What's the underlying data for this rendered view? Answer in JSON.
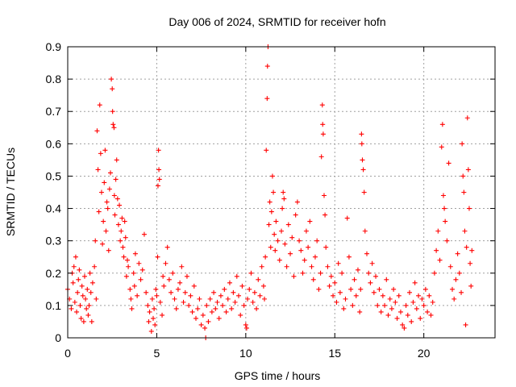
{
  "chart_data": {
    "type": "scatter",
    "title": "Day 006 of 2024, SRMTID for receiver hofn",
    "xlabel": "GPS time / hours",
    "ylabel": "SRMTID / TECUs",
    "xlim": [
      0,
      24
    ],
    "ylim": [
      0,
      0.9
    ],
    "xticks": [
      0,
      5,
      10,
      15,
      20
    ],
    "xtick_labels": [
      "0",
      "5",
      "10",
      "15",
      "20"
    ],
    "yticks": [
      0,
      0.1,
      0.2,
      0.3,
      0.4,
      0.5,
      0.6,
      0.7,
      0.8,
      0.9
    ],
    "ytick_labels": [
      "0",
      "0.1",
      "0.2",
      "0.3",
      "0.4",
      "0.5",
      "0.6",
      "0.7",
      "0.8",
      "0.9"
    ],
    "grid": true,
    "marker": "+",
    "color": "#ff0000",
    "series": [
      {
        "name": "SRMTID",
        "points": [
          [
            0.0,
            0.15
          ],
          [
            0.1,
            0.12
          ],
          [
            0.2,
            0.09
          ],
          [
            0.25,
            0.2
          ],
          [
            0.3,
            0.17
          ],
          [
            0.35,
            0.22
          ],
          [
            0.4,
            0.11
          ],
          [
            0.45,
            0.25
          ],
          [
            0.5,
            0.08
          ],
          [
            0.55,
            0.14
          ],
          [
            0.6,
            0.18
          ],
          [
            0.65,
            0.21
          ],
          [
            0.7,
            0.1
          ],
          [
            0.75,
            0.06
          ],
          [
            0.8,
            0.16
          ],
          [
            0.85,
            0.13
          ],
          [
            0.9,
            0.05
          ],
          [
            0.95,
            0.19
          ],
          [
            1.0,
            0.12
          ],
          [
            1.05,
            0.09
          ],
          [
            1.1,
            0.15
          ],
          [
            1.15,
            0.07
          ],
          [
            1.2,
            0.1
          ],
          [
            1.25,
            0.2
          ],
          [
            1.3,
            0.14
          ],
          [
            1.35,
            0.05
          ],
          [
            1.4,
            0.17
          ],
          [
            1.5,
            0.22
          ],
          [
            1.55,
            0.3
          ],
          [
            1.6,
            0.12
          ],
          [
            1.65,
            0.64
          ],
          [
            1.7,
            0.52
          ],
          [
            1.75,
            0.39
          ],
          [
            1.8,
            0.72
          ],
          [
            1.85,
            0.57
          ],
          [
            1.9,
            0.45
          ],
          [
            1.95,
            0.29
          ],
          [
            2.0,
            0.36
          ],
          [
            2.05,
            0.48
          ],
          [
            2.1,
            0.58
          ],
          [
            2.15,
            0.33
          ],
          [
            2.2,
            0.42
          ],
          [
            2.25,
            0.4
          ],
          [
            2.3,
            0.27
          ],
          [
            2.35,
            0.46
          ],
          [
            2.4,
            0.51
          ],
          [
            2.45,
            0.8
          ],
          [
            2.5,
            0.77
          ],
          [
            2.52,
            0.7
          ],
          [
            2.55,
            0.66
          ],
          [
            2.6,
            0.65
          ],
          [
            2.62,
            0.44
          ],
          [
            2.65,
            0.38
          ],
          [
            2.7,
            0.49
          ],
          [
            2.75,
            0.55
          ],
          [
            2.8,
            0.43
          ],
          [
            2.85,
            0.35
          ],
          [
            2.9,
            0.41
          ],
          [
            2.95,
            0.3
          ],
          [
            3.0,
            0.33
          ],
          [
            3.05,
            0.37
          ],
          [
            3.1,
            0.28
          ],
          [
            3.15,
            0.25
          ],
          [
            3.2,
            0.36
          ],
          [
            3.25,
            0.31
          ],
          [
            3.3,
            0.19
          ],
          [
            3.35,
            0.24
          ],
          [
            3.4,
            0.22
          ],
          [
            3.5,
            0.15
          ],
          [
            3.55,
            0.12
          ],
          [
            3.6,
            0.09
          ],
          [
            3.7,
            0.2
          ],
          [
            3.75,
            0.16
          ],
          [
            3.8,
            0.26
          ],
          [
            3.9,
            0.13
          ],
          [
            4.0,
            0.23
          ],
          [
            4.1,
            0.18
          ],
          [
            4.2,
            0.21
          ],
          [
            4.3,
            0.32
          ],
          [
            4.4,
            0.14
          ],
          [
            4.5,
            0.1
          ],
          [
            4.55,
            0.05
          ],
          [
            4.6,
            0.08
          ],
          [
            4.7,
            0.02
          ],
          [
            4.75,
            0.12
          ],
          [
            4.8,
            0.06
          ],
          [
            4.85,
            0.09
          ],
          [
            4.9,
            0.04
          ],
          [
            4.95,
            0.15
          ],
          [
            5.0,
            0.13
          ],
          [
            5.05,
            0.25
          ],
          [
            5.07,
            0.47
          ],
          [
            5.1,
            0.58
          ],
          [
            5.12,
            0.52
          ],
          [
            5.15,
            0.49
          ],
          [
            5.2,
            0.11
          ],
          [
            5.3,
            0.07
          ],
          [
            5.35,
            0.19
          ],
          [
            5.4,
            0.16
          ],
          [
            5.5,
            0.23
          ],
          [
            5.6,
            0.28
          ],
          [
            5.7,
            0.18
          ],
          [
            5.8,
            0.14
          ],
          [
            5.9,
            0.2
          ],
          [
            6.0,
            0.12
          ],
          [
            6.1,
            0.09
          ],
          [
            6.2,
            0.15
          ],
          [
            6.3,
            0.17
          ],
          [
            6.4,
            0.22
          ],
          [
            6.5,
            0.11
          ],
          [
            6.6,
            0.14
          ],
          [
            6.7,
            0.19
          ],
          [
            6.8,
            0.1
          ],
          [
            6.9,
            0.13
          ],
          [
            7.0,
            0.08
          ],
          [
            7.1,
            0.16
          ],
          [
            7.2,
            0.06
          ],
          [
            7.3,
            0.09
          ],
          [
            7.4,
            0.12
          ],
          [
            7.5,
            0.04
          ],
          [
            7.6,
            0.07
          ],
          [
            7.7,
            0.03
          ],
          [
            7.75,
            0.0
          ],
          [
            7.8,
            0.1
          ],
          [
            7.9,
            0.05
          ],
          [
            8.0,
            0.12
          ],
          [
            8.1,
            0.08
          ],
          [
            8.2,
            0.14
          ],
          [
            8.3,
            0.09
          ],
          [
            8.4,
            0.11
          ],
          [
            8.5,
            0.06
          ],
          [
            8.6,
            0.13
          ],
          [
            8.7,
            0.1
          ],
          [
            8.8,
            0.15
          ],
          [
            8.9,
            0.08
          ],
          [
            9.0,
            0.12
          ],
          [
            9.1,
            0.17
          ],
          [
            9.2,
            0.09
          ],
          [
            9.3,
            0.14
          ],
          [
            9.4,
            0.11
          ],
          [
            9.5,
            0.19
          ],
          [
            9.6,
            0.13
          ],
          [
            9.7,
            0.07
          ],
          [
            9.8,
            0.16
          ],
          [
            9.9,
            0.1
          ],
          [
            10.0,
            0.04
          ],
          [
            10.05,
            0.03
          ],
          [
            10.1,
            0.12
          ],
          [
            10.2,
            0.15
          ],
          [
            10.3,
            0.2
          ],
          [
            10.4,
            0.11
          ],
          [
            10.5,
            0.14
          ],
          [
            10.6,
            0.09
          ],
          [
            10.7,
            0.18
          ],
          [
            10.8,
            0.13
          ],
          [
            10.9,
            0.22
          ],
          [
            11.0,
            0.16
          ],
          [
            11.05,
            0.12
          ],
          [
            11.1,
            0.25
          ],
          [
            11.15,
            0.58
          ],
          [
            11.2,
            0.74
          ],
          [
            11.22,
            0.84
          ],
          [
            11.25,
            0.9
          ],
          [
            11.3,
            0.35
          ],
          [
            11.35,
            0.42
          ],
          [
            11.4,
            0.28
          ],
          [
            11.45,
            0.39
          ],
          [
            11.5,
            0.5
          ],
          [
            11.55,
            0.45
          ],
          [
            11.6,
            0.32
          ],
          [
            11.65,
            0.27
          ],
          [
            11.7,
            0.36
          ],
          [
            11.8,
            0.3
          ],
          [
            11.9,
            0.24
          ],
          [
            12.0,
            0.33
          ],
          [
            12.05,
            0.4
          ],
          [
            12.1,
            0.45
          ],
          [
            12.15,
            0.43
          ],
          [
            12.2,
            0.29
          ],
          [
            12.3,
            0.22
          ],
          [
            12.4,
            0.35
          ],
          [
            12.5,
            0.26
          ],
          [
            12.6,
            0.31
          ],
          [
            12.7,
            0.19
          ],
          [
            12.8,
            0.38
          ],
          [
            12.9,
            0.42
          ],
          [
            13.0,
            0.3
          ],
          [
            13.1,
            0.27
          ],
          [
            13.2,
            0.2
          ],
          [
            13.3,
            0.24
          ],
          [
            13.4,
            0.33
          ],
          [
            13.5,
            0.28
          ],
          [
            13.6,
            0.36
          ],
          [
            13.7,
            0.22
          ],
          [
            13.8,
            0.18
          ],
          [
            13.9,
            0.25
          ],
          [
            14.0,
            0.3
          ],
          [
            14.1,
            0.15
          ],
          [
            14.2,
            0.2
          ],
          [
            14.25,
            0.56
          ],
          [
            14.3,
            0.72
          ],
          [
            14.32,
            0.66
          ],
          [
            14.35,
            0.63
          ],
          [
            14.4,
            0.44
          ],
          [
            14.45,
            0.38
          ],
          [
            14.5,
            0.28
          ],
          [
            14.6,
            0.22
          ],
          [
            14.7,
            0.16
          ],
          [
            14.8,
            0.19
          ],
          [
            14.9,
            0.13
          ],
          [
            15.0,
            0.17
          ],
          [
            15.1,
            0.11
          ],
          [
            15.2,
            0.23
          ],
          [
            15.3,
            0.14
          ],
          [
            15.4,
            0.2
          ],
          [
            15.5,
            0.09
          ],
          [
            15.6,
            0.12
          ],
          [
            15.7,
            0.37
          ],
          [
            15.8,
            0.25
          ],
          [
            15.9,
            0.15
          ],
          [
            16.0,
            0.1
          ],
          [
            16.1,
            0.18
          ],
          [
            16.2,
            0.13
          ],
          [
            16.3,
            0.21
          ],
          [
            16.4,
            0.08
          ],
          [
            16.45,
            0.15
          ],
          [
            16.5,
            0.63
          ],
          [
            16.52,
            0.6
          ],
          [
            16.55,
            0.55
          ],
          [
            16.6,
            0.52
          ],
          [
            16.65,
            0.45
          ],
          [
            16.7,
            0.33
          ],
          [
            16.8,
            0.26
          ],
          [
            16.9,
            0.2
          ],
          [
            17.0,
            0.17
          ],
          [
            17.1,
            0.23
          ],
          [
            17.2,
            0.14
          ],
          [
            17.3,
            0.19
          ],
          [
            17.4,
            0.1
          ],
          [
            17.5,
            0.15
          ],
          [
            17.6,
            0.08
          ],
          [
            17.7,
            0.13
          ],
          [
            17.8,
            0.1
          ],
          [
            17.9,
            0.18
          ],
          [
            18.0,
            0.07
          ],
          [
            18.1,
            0.12
          ],
          [
            18.2,
            0.09
          ],
          [
            18.3,
            0.15
          ],
          [
            18.4,
            0.11
          ],
          [
            18.5,
            0.06
          ],
          [
            18.6,
            0.13
          ],
          [
            18.7,
            0.08
          ],
          [
            18.8,
            0.04
          ],
          [
            18.9,
            0.03
          ],
          [
            19.0,
            0.1
          ],
          [
            19.1,
            0.07
          ],
          [
            19.2,
            0.14
          ],
          [
            19.3,
            0.05
          ],
          [
            19.4,
            0.11
          ],
          [
            19.5,
            0.17
          ],
          [
            19.6,
            0.09
          ],
          [
            19.7,
            0.13
          ],
          [
            19.8,
            0.06
          ],
          [
            19.9,
            0.12
          ],
          [
            20.0,
            0.1
          ],
          [
            20.1,
            0.15
          ],
          [
            20.2,
            0.08
          ],
          [
            20.3,
            0.13
          ],
          [
            20.4,
            0.07
          ],
          [
            20.5,
            0.11
          ],
          [
            20.6,
            0.2
          ],
          [
            20.7,
            0.27
          ],
          [
            20.8,
            0.33
          ],
          [
            20.9,
            0.24
          ],
          [
            21.0,
            0.59
          ],
          [
            21.05,
            0.66
          ],
          [
            21.1,
            0.44
          ],
          [
            21.15,
            0.4
          ],
          [
            21.2,
            0.36
          ],
          [
            21.3,
            0.3
          ],
          [
            21.4,
            0.54
          ],
          [
            21.5,
            0.22
          ],
          [
            21.6,
            0.15
          ],
          [
            21.7,
            0.12
          ],
          [
            21.8,
            0.18
          ],
          [
            21.9,
            0.26
          ],
          [
            22.0,
            0.2
          ],
          [
            22.1,
            0.14
          ],
          [
            22.15,
            0.6
          ],
          [
            22.2,
            0.5
          ],
          [
            22.25,
            0.45
          ],
          [
            22.3,
            0.33
          ],
          [
            22.35,
            0.04
          ],
          [
            22.4,
            0.28
          ],
          [
            22.45,
            0.68
          ],
          [
            22.5,
            0.52
          ],
          [
            22.55,
            0.4
          ],
          [
            22.6,
            0.23
          ],
          [
            22.65,
            0.16
          ],
          [
            22.7,
            0.27
          ]
        ]
      }
    ]
  }
}
